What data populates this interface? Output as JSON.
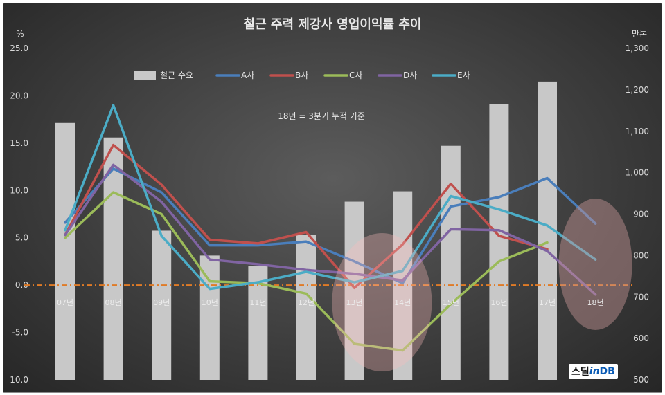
{
  "chart_data": {
    "type": "bar+line",
    "title": "철근 주력 제강사 영업이익률 추이",
    "note": "18년 = 3분기 누적 기준",
    "left_axis": {
      "unit": "%",
      "min": -10,
      "max": 25,
      "step": 5,
      "ticks": [
        "-10.0",
        "-5.0",
        "0.0",
        "5.0",
        "10.0",
        "15.0",
        "20.0",
        "25.0"
      ]
    },
    "right_axis": {
      "unit": "만톤",
      "min": 500,
      "max": 1300,
      "step": 100,
      "ticks": [
        "500",
        "600",
        "700",
        "800",
        "900",
        "1,000",
        "1,100",
        "1,200",
        "1,300"
      ]
    },
    "categories": [
      "07년",
      "08년",
      "09년",
      "10년",
      "11년",
      "12년",
      "13년",
      "14년",
      "15년",
      "16년",
      "17년",
      "18년"
    ],
    "bars": {
      "name": "철근 수요",
      "color": "#c8c8c8",
      "values": [
        1120,
        1085,
        860,
        800,
        775,
        850,
        930,
        955,
        1065,
        1165,
        1220,
        null
      ]
    },
    "series": [
      {
        "name": "A사",
        "color": "#4a7ebb",
        "values": [
          6.6,
          12.3,
          9.8,
          4.2,
          4.2,
          4.6,
          2.5,
          0.2,
          8.3,
          9.3,
          11.3,
          6.5
        ]
      },
      {
        "name": "B사",
        "color": "#c0504d",
        "values": [
          5.3,
          14.8,
          10.6,
          4.8,
          4.4,
          5.6,
          -0.3,
          4.3,
          10.7,
          5.2,
          3.8,
          null
        ]
      },
      {
        "name": "C사",
        "color": "#9bbb59",
        "values": [
          5.0,
          9.8,
          7.5,
          0.4,
          0.2,
          -0.9,
          -6.2,
          -6.9,
          -2.0,
          2.5,
          4.5,
          null
        ]
      },
      {
        "name": "D사",
        "color": "#8064a2",
        "values": [
          5.3,
          12.7,
          8.8,
          2.7,
          2.2,
          1.6,
          1.2,
          0.5,
          5.9,
          5.8,
          3.6,
          -1.0
        ]
      },
      {
        "name": "E사",
        "color": "#4bacc6",
        "values": [
          5.8,
          19.0,
          5.2,
          -0.4,
          0.3,
          1.4,
          0.3,
          1.5,
          9.4,
          8.0,
          6.3,
          2.7
        ]
      }
    ],
    "zero_line_color": "#e07b26",
    "legend_position": "top",
    "grid": false
  },
  "watermark": {
    "part1": "스틸",
    "part2": "in",
    "part3": "DB"
  }
}
